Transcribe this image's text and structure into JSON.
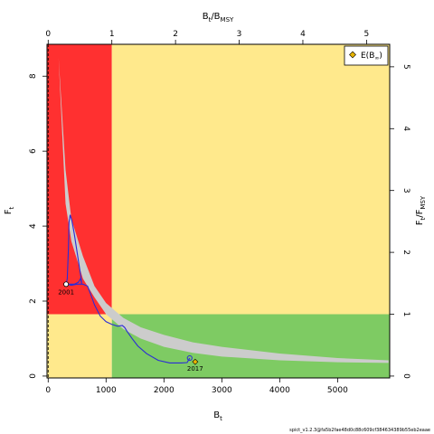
{
  "chart_data": {
    "type": "line",
    "title": "",
    "colors": {
      "red_zone": "#ff3030",
      "yellow_zone": "#ffe98c",
      "green_zone": "#7ecb63",
      "band": "#cccccc",
      "trajectory": "#2b2bd6",
      "expected_point": "#e8b400"
    },
    "bottom_axis": {
      "label": "B",
      "label_sub": "t",
      "ticks": [
        0,
        1000,
        2000,
        3000,
        4000,
        5000
      ],
      "range": [
        -20,
        5900
      ]
    },
    "left_axis": {
      "label": "F",
      "label_sub": "t",
      "ticks": [
        0,
        2,
        4,
        6,
        8
      ],
      "range": [
        -0.05,
        8.85
      ]
    },
    "top_axis": {
      "label": "B",
      "label_sub": "t",
      "label_mid": "/B",
      "label_sub2": "MSY",
      "ticks": [
        0,
        1,
        2,
        3,
        4,
        5
      ]
    },
    "right_axis": {
      "label": "F",
      "label_sub": "t",
      "label_mid": "/F",
      "label_sub2": "MSY",
      "ticks": [
        0,
        1,
        2,
        3,
        4,
        5
      ]
    },
    "reference_points": {
      "Bmsy": 1100,
      "Fmsy": 1.65
    },
    "band": {
      "upper": [
        [
          180,
          8.5
        ],
        [
          300,
          5.5
        ],
        [
          400,
          4.2
        ],
        [
          600,
          3.2
        ],
        [
          800,
          2.4
        ],
        [
          1000,
          1.95
        ],
        [
          1300,
          1.55
        ],
        [
          1600,
          1.3
        ],
        [
          2000,
          1.1
        ],
        [
          2500,
          0.9
        ],
        [
          3000,
          0.78
        ],
        [
          4000,
          0.6
        ],
        [
          5000,
          0.48
        ],
        [
          5880,
          0.42
        ]
      ],
      "lower": [
        [
          180,
          8.5
        ],
        [
          300,
          4.6
        ],
        [
          400,
          3.6
        ],
        [
          600,
          2.6
        ],
        [
          800,
          2.1
        ],
        [
          1000,
          1.65
        ],
        [
          1300,
          1.25
        ],
        [
          1600,
          1.0
        ],
        [
          2000,
          0.78
        ],
        [
          2500,
          0.62
        ],
        [
          3000,
          0.52
        ],
        [
          4000,
          0.42
        ],
        [
          5000,
          0.37
        ],
        [
          5880,
          0.35
        ]
      ]
    },
    "trajectory": [
      [
        310,
        2.45
      ],
      [
        330,
        2.6
      ],
      [
        350,
        3.4
      ],
      [
        360,
        4.1
      ],
      [
        380,
        4.3
      ],
      [
        410,
        4.15
      ],
      [
        450,
        3.8
      ],
      [
        500,
        3.3
      ],
      [
        540,
        2.9
      ],
      [
        570,
        2.6
      ],
      [
        580,
        2.45
      ],
      [
        560,
        2.6
      ],
      [
        520,
        2.5
      ],
      [
        450,
        2.45
      ],
      [
        380,
        2.45
      ],
      [
        330,
        2.45
      ],
      [
        400,
        2.42
      ],
      [
        500,
        2.45
      ],
      [
        600,
        2.45
      ],
      [
        680,
        2.4
      ],
      [
        730,
        2.2
      ],
      [
        800,
        1.9
      ],
      [
        900,
        1.6
      ],
      [
        1000,
        1.45
      ],
      [
        1100,
        1.38
      ],
      [
        1200,
        1.33
      ],
      [
        1280,
        1.35
      ],
      [
        1320,
        1.3
      ],
      [
        1360,
        1.2
      ],
      [
        1450,
        1.0
      ],
      [
        1550,
        0.8
      ],
      [
        1700,
        0.6
      ],
      [
        1900,
        0.42
      ],
      [
        2100,
        0.35
      ],
      [
        2300,
        0.35
      ],
      [
        2400,
        0.36
      ],
      [
        2430,
        0.44
      ],
      [
        2445,
        0.48
      ]
    ],
    "start_point": {
      "year": "2001",
      "x": 310,
      "y": 2.45
    },
    "end_point": {
      "year": "2017",
      "x": 2445,
      "y": 0.48
    },
    "expected_point": {
      "x": 2540,
      "y": 0.38
    },
    "legend": {
      "label": "E(B",
      "label_sub": "∞",
      "label_end": ")",
      "placement": "top-right"
    },
    "footer": "spict_v1.2.3@fa5b2fae48d0c88c609cf384634389b55eb2eaae"
  }
}
